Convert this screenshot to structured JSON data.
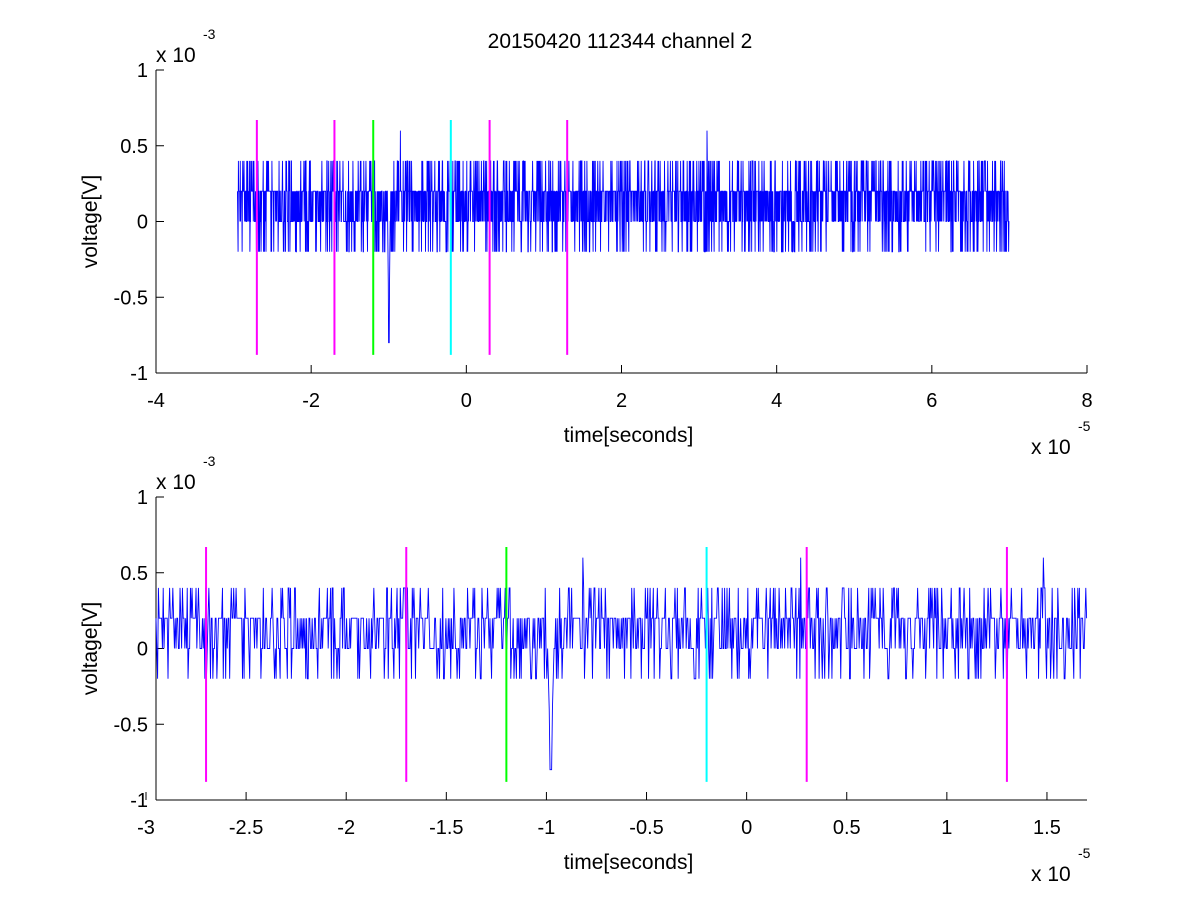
{
  "figure": {
    "title": "20150420 112344 channel 2"
  },
  "chart_data": [
    {
      "type": "line",
      "title": "20150420 112344 channel 2",
      "xlabel": "time[seconds]",
      "ylabel": "voltage[V]",
      "x_exponent_label": "x 10",
      "x_exponent_power": "-5",
      "y_exponent_label": "x 10",
      "y_exponent_power": "-3",
      "xlim": [
        -4e-05,
        8e-05
      ],
      "ylim": [
        -0.001,
        0.001
      ],
      "xticks": [
        -4e-05,
        -2e-05,
        0,
        2e-05,
        4e-05,
        6e-05,
        8e-05
      ],
      "xtick_labels": [
        "-4",
        "-2",
        "0",
        "2",
        "4",
        "6",
        "8"
      ],
      "yticks": [
        0.001,
        0.0005,
        0,
        -0.0005,
        -0.001
      ],
      "ytick_labels": [
        "1",
        "0.5",
        "0",
        "-0.5",
        "-1"
      ],
      "grid": false,
      "series": [
        {
          "color": "#0000ff",
          "x_start": -2.95e-05,
          "x_end": 7e-05,
          "quantization_step": 0.0002,
          "typical_values": [
            -0.0002,
            0,
            0.0002,
            0.0004
          ],
          "notable_points": [
            {
              "x": -1e-05,
              "y": -0.0008
            },
            {
              "x": -8.5e-06,
              "y": 0.0006
            },
            {
              "x": 3.1e-05,
              "y": 0.0006
            }
          ]
        }
      ],
      "markers": [
        {
          "x": -2.7e-05,
          "color": "#ff00ff"
        },
        {
          "x": -1.7e-05,
          "color": "#ff00ff"
        },
        {
          "x": -1.2e-05,
          "color": "#00ff00"
        },
        {
          "x": -2e-06,
          "color": "#00ffff"
        },
        {
          "x": 3e-06,
          "color": "#ff00ff"
        },
        {
          "x": 1.3e-05,
          "color": "#ff00ff"
        }
      ],
      "marker_range": [
        -0.00088,
        0.00067
      ]
    },
    {
      "type": "line",
      "xlabel": "time[seconds]",
      "ylabel": "voltage[V]",
      "x_exponent_label": "x 10",
      "x_exponent_power": "-5",
      "y_exponent_label": "x 10",
      "y_exponent_power": "-3",
      "xlim": [
        -2.95e-05,
        1.7e-05
      ],
      "ylim": [
        -0.001,
        0.001
      ],
      "xticks": [
        -3e-05,
        -2.5e-05,
        -2e-05,
        -1.5e-05,
        -1e-05,
        -5e-06,
        0,
        5e-06,
        1e-05,
        1.5e-05
      ],
      "xtick_labels": [
        "-3",
        "-2.5",
        "-2",
        "-1.5",
        "-1",
        "-0.5",
        "0",
        "0.5",
        "1",
        "1.5"
      ],
      "yticks": [
        0.001,
        0.0005,
        0,
        -0.0005,
        -0.001
      ],
      "ytick_labels": [
        "1",
        "0.5",
        "0",
        "-0.5",
        "-1"
      ],
      "grid": false,
      "series": [
        {
          "color": "#0000ff",
          "x_start": -2.95e-05,
          "x_end": 1.7e-05,
          "quantization_step": 0.0002,
          "typical_values": [
            -0.0002,
            0,
            0.0002,
            0.0004
          ],
          "notable_points": [
            {
              "x": -9.8e-06,
              "y": -0.0008
            },
            {
              "x": -8.2e-06,
              "y": 0.0006
            },
            {
              "x": 2.7e-06,
              "y": 0.0006
            },
            {
              "x": 1.48e-05,
              "y": 0.0006
            }
          ]
        }
      ],
      "markers": [
        {
          "x": -2.7e-05,
          "color": "#ff00ff"
        },
        {
          "x": -1.7e-05,
          "color": "#ff00ff"
        },
        {
          "x": -1.2e-05,
          "color": "#00ff00"
        },
        {
          "x": -2e-06,
          "color": "#00ffff"
        },
        {
          "x": 3e-06,
          "color": "#ff00ff"
        },
        {
          "x": 1.3e-05,
          "color": "#ff00ff"
        }
      ],
      "marker_range": [
        -0.00088,
        0.00067
      ]
    }
  ]
}
